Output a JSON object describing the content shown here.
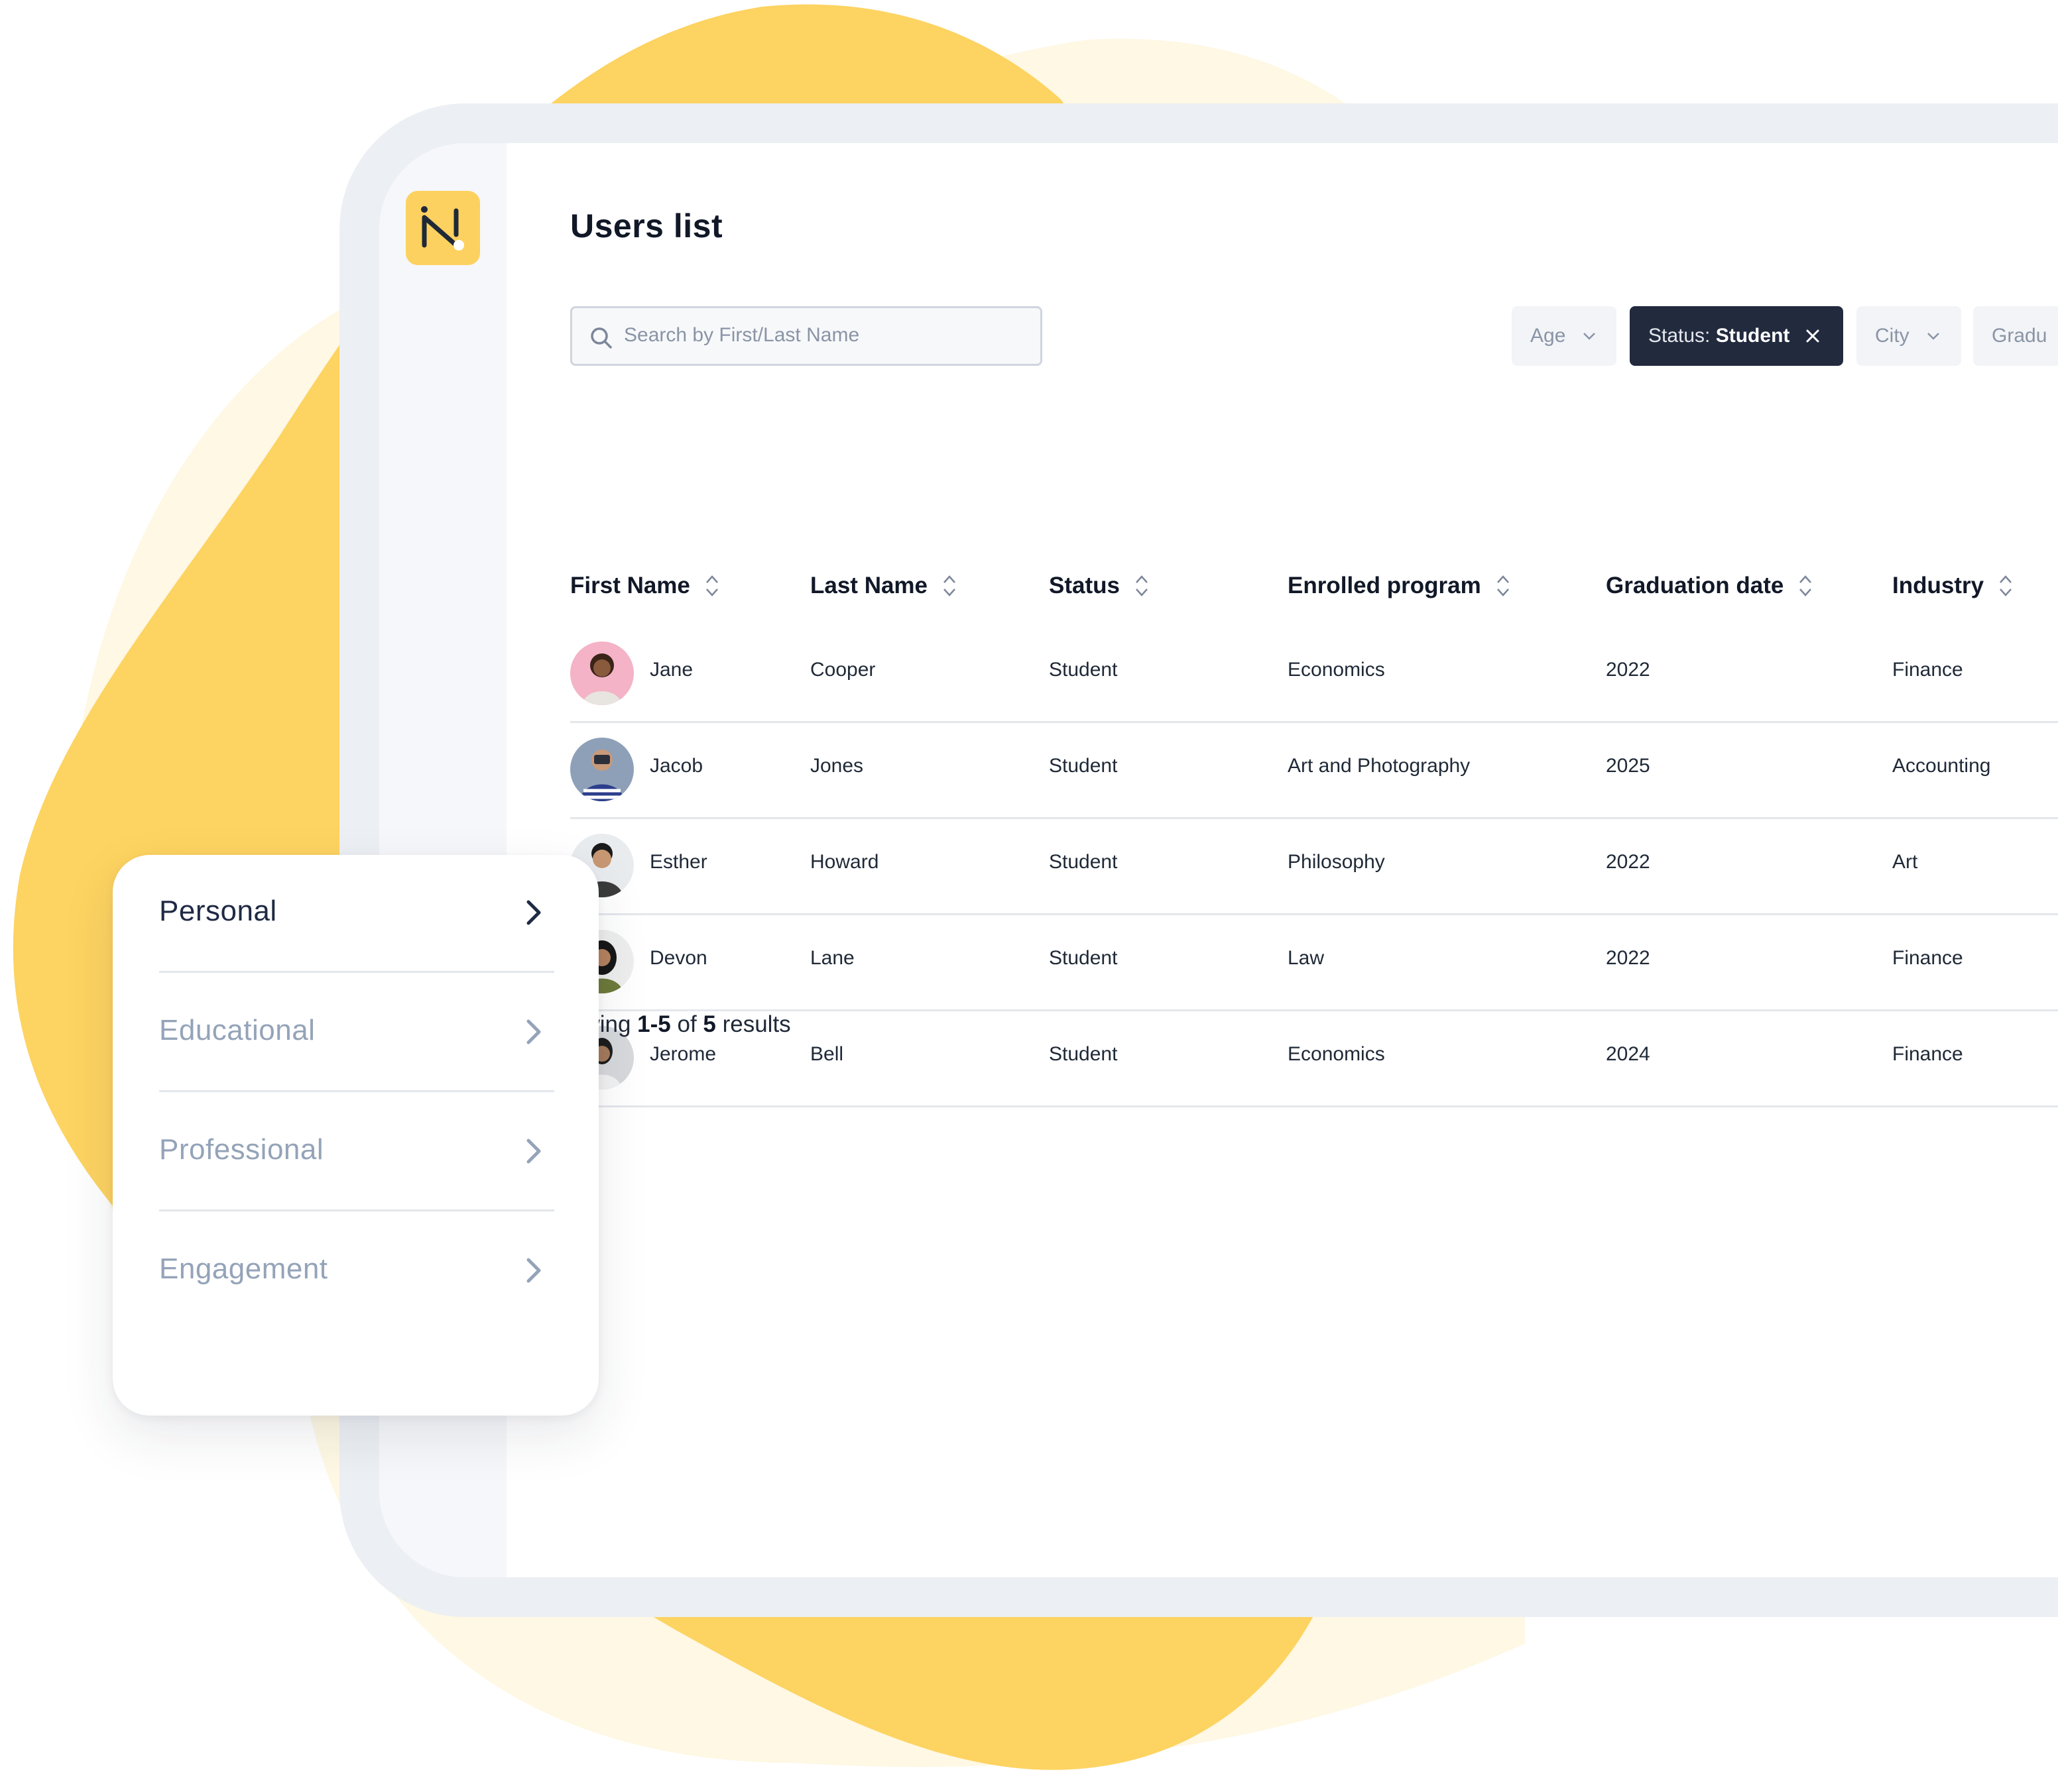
{
  "app": {
    "logo_letter": "N",
    "page_title": "Users list"
  },
  "search": {
    "placeholder": "Search by First/Last Name"
  },
  "filters": {
    "age": "Age",
    "status_prefix": "Status:",
    "status_value": "Student",
    "city": "City",
    "graduation": "Gradu"
  },
  "table": {
    "columns": [
      "First Name",
      "Last Name",
      "Status",
      "Enrolled program",
      "Graduation date",
      "Industry"
    ],
    "rows": [
      {
        "first": "Jane",
        "last": "Cooper",
        "status": "Student",
        "program": "Economics",
        "grad": "2022",
        "industry": "Finance"
      },
      {
        "first": "Jacob",
        "last": "Jones",
        "status": "Student",
        "program": "Art and Photography",
        "grad": "2025",
        "industry": "Accounting"
      },
      {
        "first": "Esther",
        "last": "Howard",
        "status": "Student",
        "program": "Philosophy",
        "grad": "2022",
        "industry": "Art"
      },
      {
        "first": "Devon",
        "last": "Lane",
        "status": "Student",
        "program": "Law",
        "grad": "2022",
        "industry": "Finance"
      },
      {
        "first": "Jerome",
        "last": "Bell",
        "status": "Student",
        "program": "Economics",
        "grad": "2024",
        "industry": "Finance"
      }
    ]
  },
  "results": {
    "prefix": "owing ",
    "range": "1-5",
    "middle": " of ",
    "total": "5",
    "suffix": " results"
  },
  "card": {
    "items": [
      {
        "label": "Personal",
        "active": true
      },
      {
        "label": "Educational",
        "active": false
      },
      {
        "label": "Professional",
        "active": false
      },
      {
        "label": "Engagement",
        "active": false
      }
    ]
  },
  "colors": {
    "accent_yellow": "#FDD15F",
    "pale_yellow": "#FEF8E4",
    "dark_navy": "#222A3E",
    "muted_text": "#94A3B8"
  }
}
